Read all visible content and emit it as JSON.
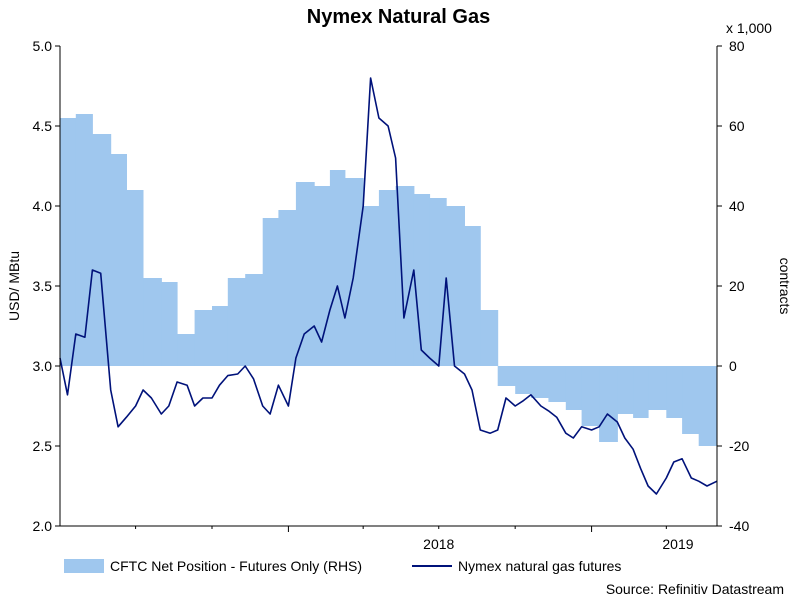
{
  "chart_data": {
    "type": "line",
    "title": "Nymex Natural Gas",
    "left_axis": {
      "label": "USD/ MBtu",
      "ticks": [
        "5.0",
        "4.5",
        "4.0",
        "3.5",
        "3.0",
        "2.5",
        "2.0"
      ],
      "range": [
        2.0,
        5.0
      ]
    },
    "right_axis": {
      "label": "contracts",
      "multiplier": "x 1,000",
      "ticks": [
        "80",
        "60",
        "40",
        "20",
        "0",
        "-20",
        "-40"
      ],
      "range": [
        -40,
        80
      ]
    },
    "x_labels": [
      "2018",
      "2019"
    ],
    "x_range": [
      "2017-04-01",
      "2019-06-01"
    ],
    "grid": false,
    "legend_position": "bottom",
    "series": [
      {
        "name": "CFTC Net Position - Futures Only (RHS)",
        "type": "area",
        "axis": "right",
        "color": "#9fc7ee",
        "x": [
          "2017-04-01",
          "2017-04-20",
          "2017-05-10",
          "2017-06-01",
          "2017-06-20",
          "2017-07-10",
          "2017-08-01",
          "2017-08-20",
          "2017-09-10",
          "2017-10-01",
          "2017-10-20",
          "2017-11-10",
          "2017-12-01",
          "2017-12-20",
          "2018-01-10",
          "2018-02-01",
          "2018-02-20",
          "2018-03-10",
          "2018-04-01",
          "2018-04-20",
          "2018-05-10",
          "2018-06-01",
          "2018-06-20",
          "2018-07-10",
          "2018-08-01",
          "2018-08-20",
          "2018-09-10",
          "2018-10-01",
          "2018-10-20",
          "2018-11-10",
          "2018-12-01",
          "2018-12-20",
          "2019-01-10",
          "2019-02-01",
          "2019-02-20",
          "2019-03-10",
          "2019-04-01",
          "2019-04-20",
          "2019-05-10",
          "2019-06-01"
        ],
        "values": [
          62,
          63,
          58,
          53,
          44,
          22,
          21,
          8,
          14,
          15,
          22,
          23,
          37,
          39,
          46,
          45,
          49,
          47,
          40,
          44,
          45,
          43,
          42,
          40,
          35,
          14,
          -5,
          -7,
          -8,
          -9,
          -11,
          -15,
          -19,
          -12,
          -13,
          -11,
          -13,
          -17,
          -20,
          -25
        ]
      },
      {
        "name": "Nymex natural gas futures",
        "type": "line",
        "axis": "left",
        "color": "#00127a",
        "x": [
          "2017-04-01",
          "2017-04-10",
          "2017-04-20",
          "2017-05-01",
          "2017-05-10",
          "2017-05-20",
          "2017-06-01",
          "2017-06-10",
          "2017-06-20",
          "2017-07-01",
          "2017-07-10",
          "2017-07-20",
          "2017-08-01",
          "2017-08-10",
          "2017-08-20",
          "2017-09-01",
          "2017-09-10",
          "2017-09-20",
          "2017-10-01",
          "2017-10-10",
          "2017-10-20",
          "2017-11-01",
          "2017-11-10",
          "2017-11-20",
          "2017-12-01",
          "2017-12-10",
          "2017-12-20",
          "2018-01-01",
          "2018-01-10",
          "2018-01-20",
          "2018-02-01",
          "2018-02-10",
          "2018-02-20",
          "2018-03-01",
          "2018-03-10",
          "2018-03-20",
          "2018-04-01",
          "2018-04-10",
          "2018-04-20",
          "2018-05-01",
          "2018-05-10",
          "2018-05-20",
          "2018-06-01",
          "2018-06-10",
          "2018-06-20",
          "2018-07-01",
          "2018-07-10",
          "2018-07-20",
          "2018-08-01",
          "2018-08-10",
          "2018-08-20",
          "2018-09-01",
          "2018-09-10",
          "2018-09-20",
          "2018-10-01",
          "2018-10-10",
          "2018-10-20",
          "2018-11-01",
          "2018-11-10",
          "2018-11-20",
          "2018-12-01",
          "2018-12-10",
          "2018-12-20",
          "2019-01-01",
          "2019-01-10",
          "2019-01-20",
          "2019-02-01",
          "2019-02-10",
          "2019-02-20",
          "2019-03-01",
          "2019-03-10",
          "2019-03-20",
          "2019-04-01",
          "2019-04-10",
          "2019-04-20",
          "2019-05-01",
          "2019-05-10",
          "2019-05-20",
          "2019-06-01"
        ],
        "values": [
          3.05,
          2.82,
          3.2,
          3.18,
          3.6,
          3.58,
          2.85,
          2.62,
          2.68,
          2.75,
          2.85,
          2.8,
          2.7,
          2.75,
          2.9,
          2.88,
          2.75,
          2.8,
          2.8,
          2.88,
          2.94,
          2.95,
          3.0,
          2.92,
          2.75,
          2.7,
          2.88,
          2.75,
          3.05,
          3.2,
          3.25,
          3.15,
          3.35,
          3.5,
          3.3,
          3.55,
          4.0,
          4.8,
          4.55,
          4.5,
          4.3,
          3.3,
          3.6,
          3.1,
          3.05,
          3.0,
          3.55,
          3.0,
          2.95,
          2.85,
          2.6,
          2.58,
          2.6,
          2.8,
          2.75,
          2.78,
          2.82,
          2.75,
          2.72,
          2.68,
          2.58,
          2.55,
          2.62,
          2.6,
          2.62,
          2.7,
          2.65,
          2.55,
          2.48,
          2.36,
          2.25,
          2.2,
          2.3,
          2.4,
          2.42,
          2.3,
          2.28,
          2.25,
          2.28
        ]
      }
    ]
  },
  "legend": [
    "CFTC Net Position - Futures Only (RHS)",
    "Nymex natural gas futures"
  ],
  "source": "Source: Refinitiv Datastream"
}
